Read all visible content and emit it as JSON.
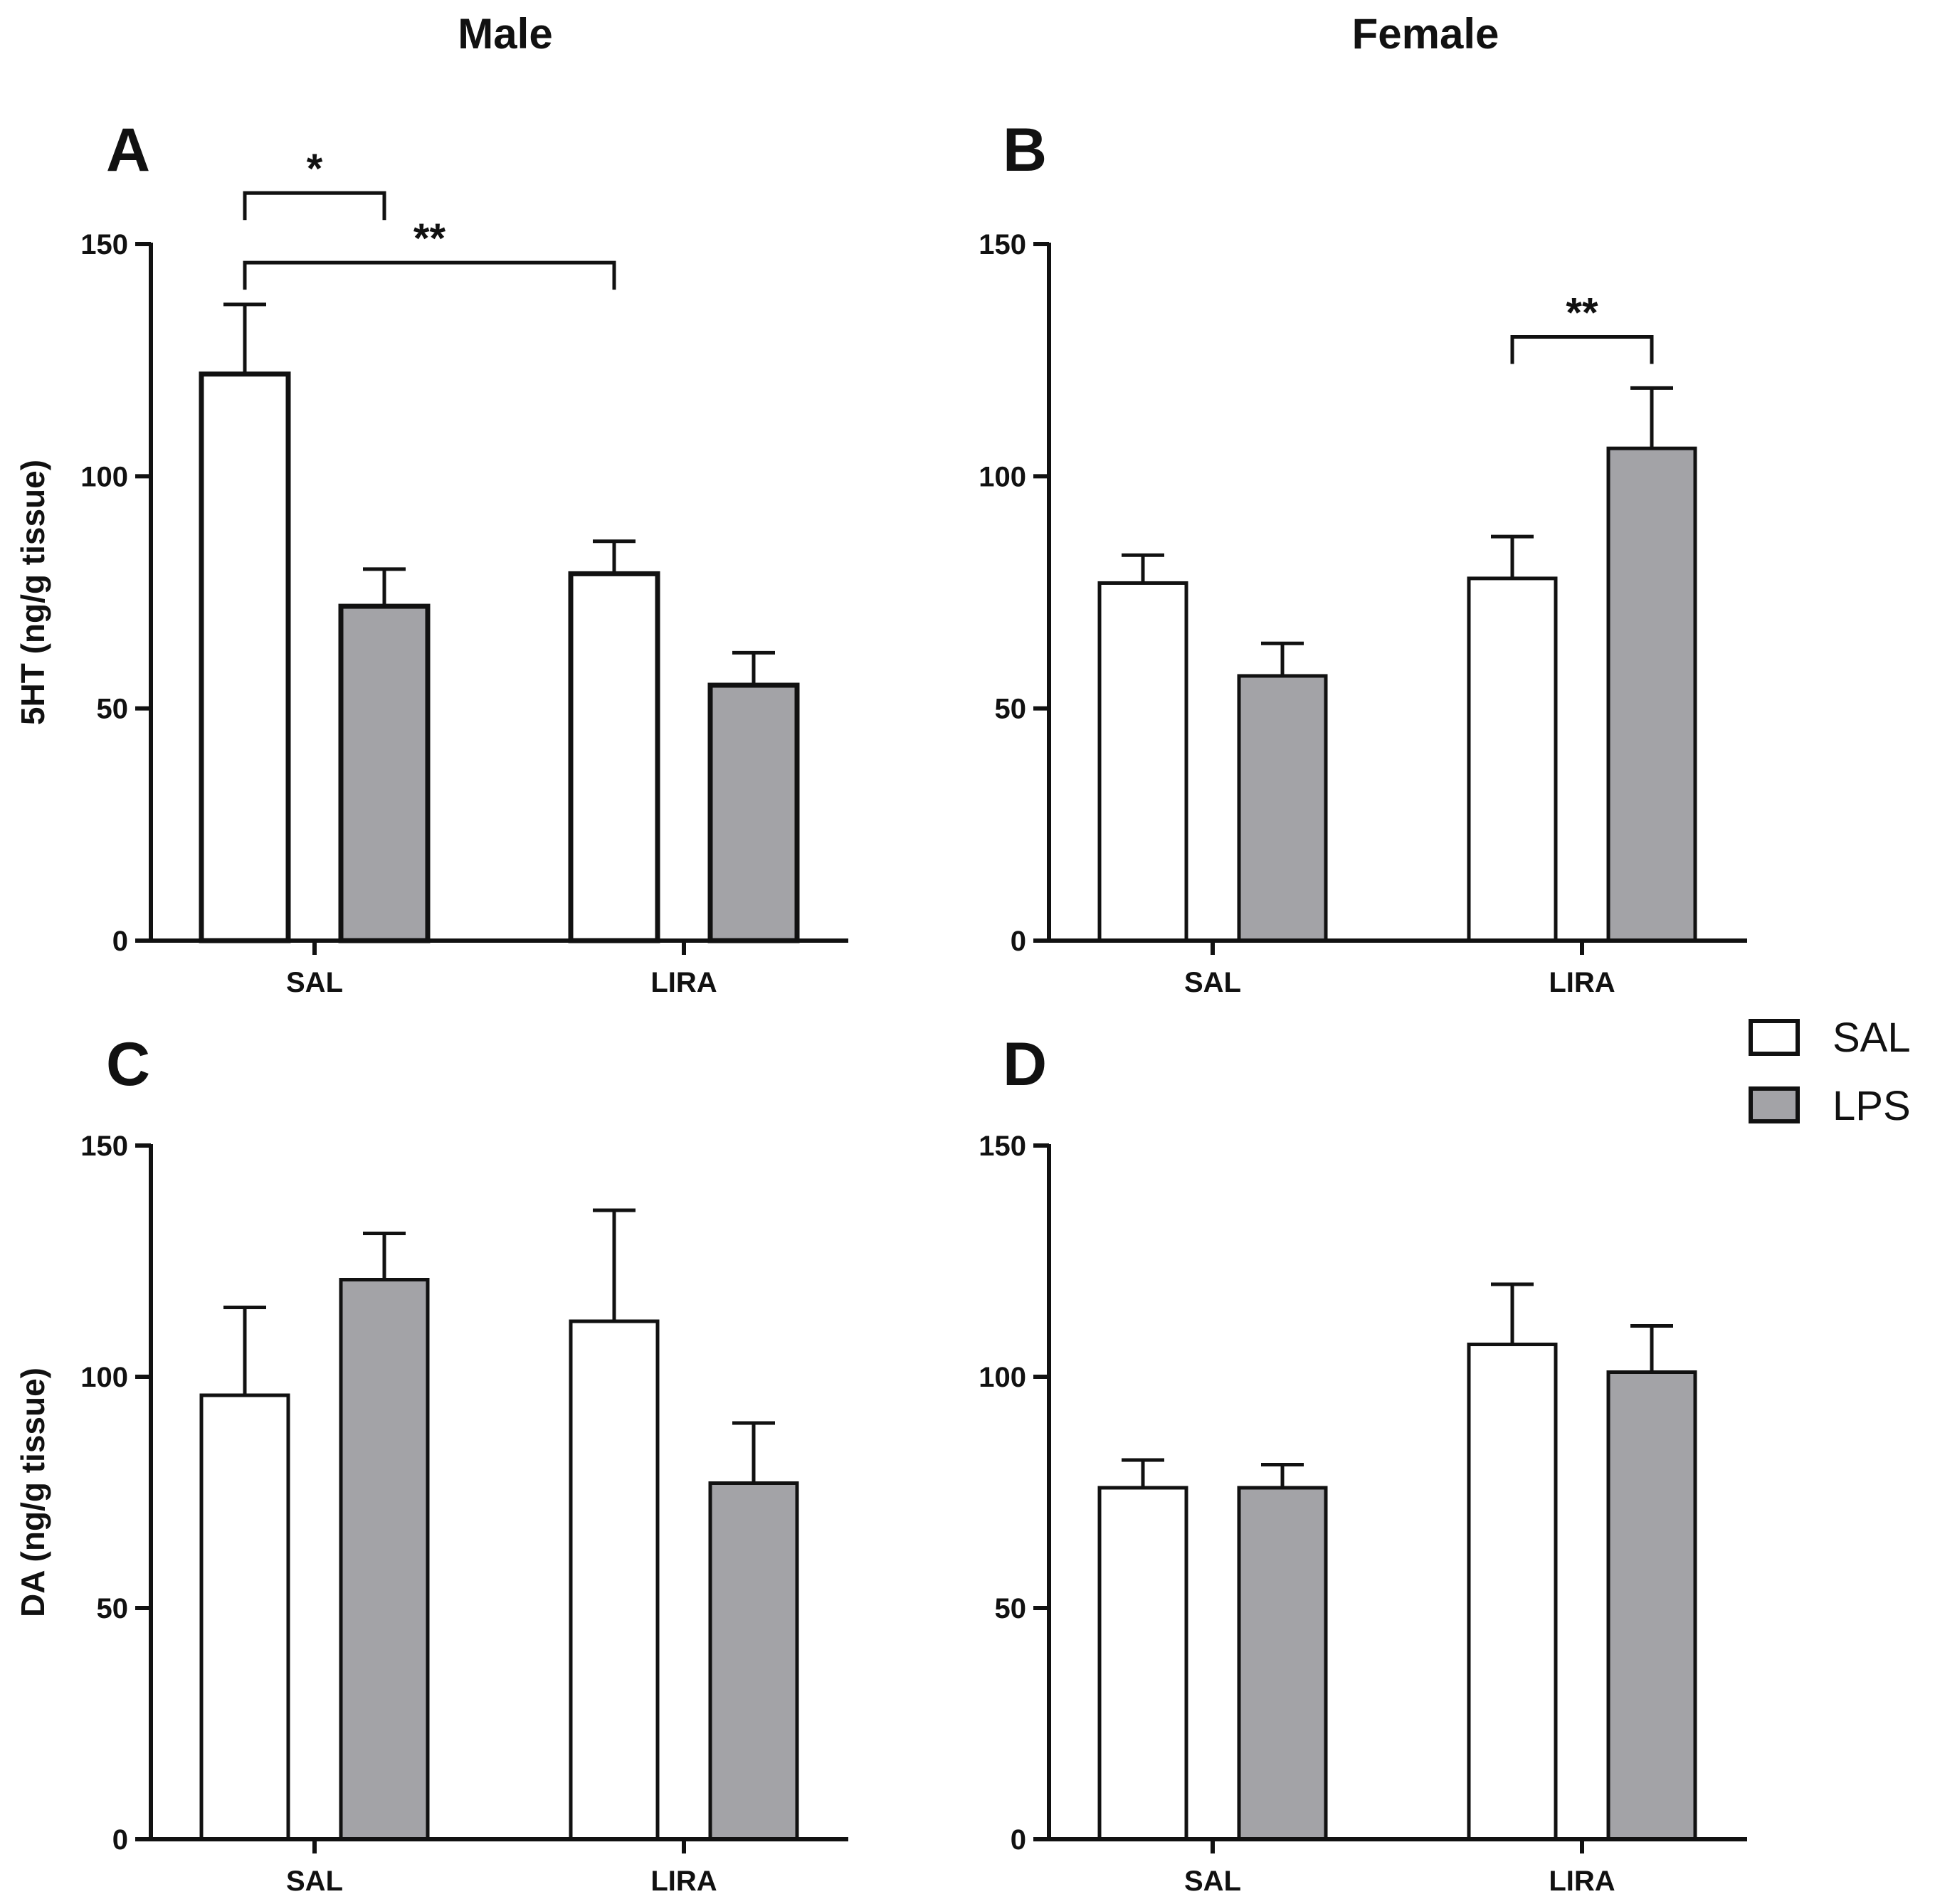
{
  "columns": {
    "left": "Male",
    "right": "Female"
  },
  "legend": [
    {
      "name": "SAL",
      "color": "#ffffff"
    },
    {
      "name": "LPS",
      "color": "#a3a3a7"
    }
  ],
  "chart_data": [
    {
      "panel": "A",
      "type": "bar",
      "categories": [
        "SAL",
        "LIRA"
      ],
      "ylabel": "5HT (ng/g tissue)",
      "ylim": [
        0,
        150
      ],
      "yticks": [
        0,
        50,
        100,
        150
      ],
      "series": [
        {
          "name": "SAL",
          "values": [
            122,
            79
          ],
          "errors": [
            15,
            7
          ]
        },
        {
          "name": "LPS",
          "values": [
            72,
            55
          ],
          "errors": [
            8,
            7
          ]
        }
      ],
      "significance": [
        {
          "label": "**",
          "from": [
            0,
            0
          ],
          "to": [
            0,
            1
          ],
          "y": 146
        },
        {
          "label": "*",
          "from": [
            0,
            0
          ],
          "to": [
            1,
            0
          ],
          "y": 161
        }
      ]
    },
    {
      "panel": "B",
      "type": "bar",
      "categories": [
        "SAL",
        "LIRA"
      ],
      "ylabel": "",
      "ylim": [
        0,
        150
      ],
      "yticks": [
        0,
        50,
        100,
        150
      ],
      "series": [
        {
          "name": "SAL",
          "values": [
            77,
            78
          ],
          "errors": [
            6,
            9
          ]
        },
        {
          "name": "LPS",
          "values": [
            57,
            106
          ],
          "errors": [
            7,
            13
          ]
        }
      ],
      "significance": [
        {
          "label": "**",
          "from": [
            0,
            1
          ],
          "to": [
            1,
            1
          ],
          "y": 130
        }
      ]
    },
    {
      "panel": "C",
      "type": "bar",
      "categories": [
        "SAL",
        "LIRA"
      ],
      "ylabel": "DA (ng/g tissue)",
      "ylim": [
        0,
        150
      ],
      "yticks": [
        0,
        50,
        100,
        150
      ],
      "series": [
        {
          "name": "SAL",
          "values": [
            96,
            112
          ],
          "errors": [
            19,
            24
          ]
        },
        {
          "name": "LPS",
          "values": [
            121,
            77
          ],
          "errors": [
            10,
            13
          ]
        }
      ],
      "significance": []
    },
    {
      "panel": "D",
      "type": "bar",
      "categories": [
        "SAL",
        "LIRA"
      ],
      "ylabel": "",
      "ylim": [
        0,
        150
      ],
      "yticks": [
        0,
        50,
        100,
        150
      ],
      "series": [
        {
          "name": "SAL",
          "values": [
            76,
            107
          ],
          "errors": [
            6,
            13
          ]
        },
        {
          "name": "LPS",
          "values": [
            76,
            101
          ],
          "errors": [
            5,
            10
          ]
        }
      ],
      "significance": []
    }
  ]
}
